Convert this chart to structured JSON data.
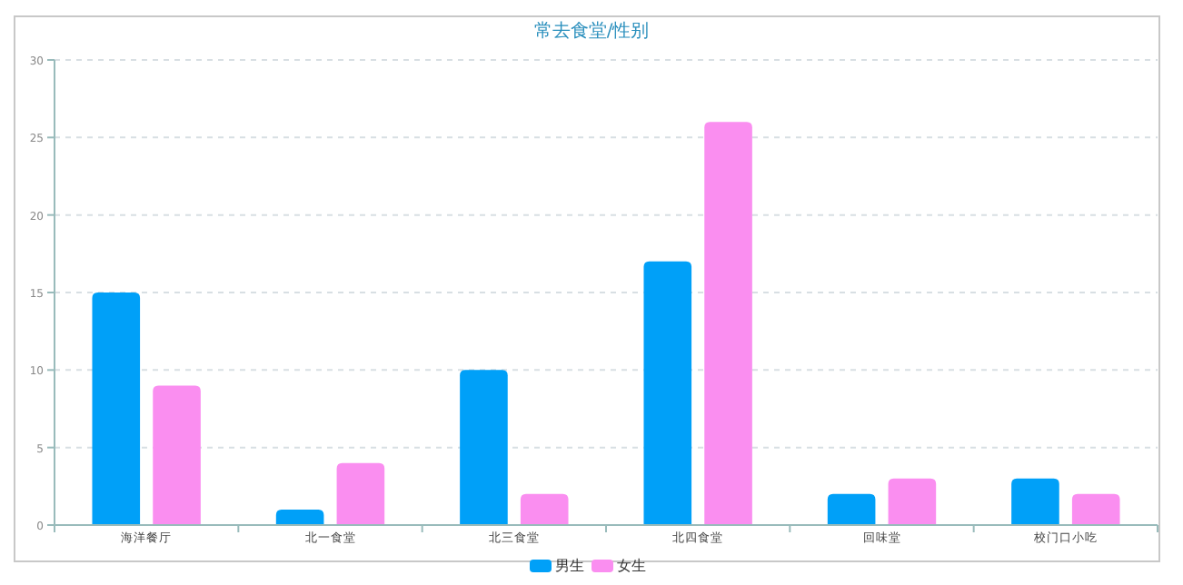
{
  "chart_data": {
    "type": "bar",
    "title": "常去食堂/性别",
    "categories": [
      "海洋餐厅",
      "北一食堂",
      "北三食堂",
      "北四食堂",
      "回味堂",
      "校门口小吃"
    ],
    "series": [
      {
        "name": "男生",
        "color": "#00a0f8",
        "values": [
          15,
          1,
          10,
          17,
          2,
          3
        ]
      },
      {
        "name": "女生",
        "color": "#fa8ef0",
        "values": [
          9,
          4,
          2,
          26,
          3,
          2
        ]
      }
    ],
    "ylim": [
      0,
      30
    ],
    "yticks": [
      0,
      5,
      10,
      15,
      20,
      25,
      30
    ],
    "grid": "y",
    "legend": "bottom"
  }
}
